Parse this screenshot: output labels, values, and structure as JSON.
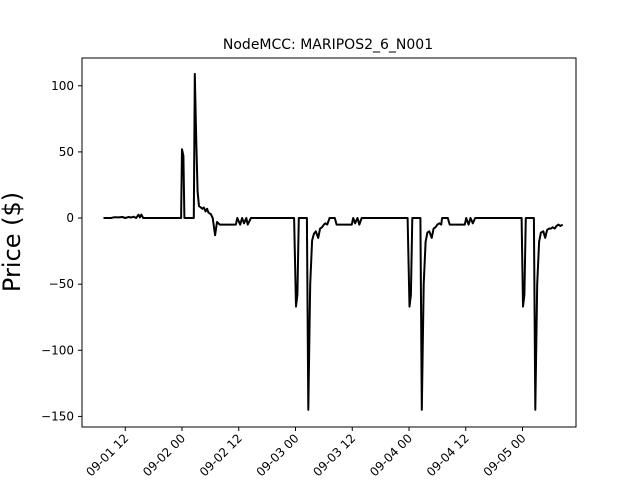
{
  "chart_data": {
    "type": "line",
    "title": "NodeMCC: MARIPOS2_6_N001",
    "xlabel": "",
    "ylabel": "Price ($)",
    "ylim": [
      -158,
      121
    ],
    "xlim_hours": [
      -31.5,
      56.0
    ],
    "grid": false,
    "x_ticks": [
      {
        "label": "09-01 12",
        "hours": -12
      },
      {
        "label": "09-02 00",
        "hours": 0
      },
      {
        "label": "09-02 12",
        "hours": 12
      },
      {
        "label": "09-03 00",
        "hours": 24
      },
      {
        "label": "09-03 12",
        "hours": 36
      },
      {
        "label": "09-04 00",
        "hours": 48
      },
      {
        "label": "09-04 12",
        "hours": 60
      },
      {
        "label": "09-05 00",
        "hours": 72
      }
    ],
    "y_ticks": [
      100,
      50,
      0,
      -50,
      -100,
      -150
    ],
    "series": [
      {
        "color": "#000000",
        "points": [
          [
            -16.6,
            0
          ],
          [
            -15.0,
            0
          ],
          [
            -14.3,
            0.6
          ],
          [
            -13.5,
            0.5
          ],
          [
            -12.6,
            0.8
          ],
          [
            -12.0,
            0
          ],
          [
            -11.3,
            0.8
          ],
          [
            -10.8,
            0.4
          ],
          [
            -10.2,
            1.0
          ],
          [
            -9.7,
            0
          ],
          [
            -9.2,
            2.5
          ],
          [
            -8.9,
            0.5
          ],
          [
            -8.6,
            2.7
          ],
          [
            -8.2,
            0
          ],
          [
            -0.2,
            0
          ],
          [
            0.0,
            52
          ],
          [
            0.3,
            47
          ],
          [
            0.5,
            0
          ],
          [
            2.5,
            0
          ],
          [
            2.7,
            109
          ],
          [
            3.0,
            60
          ],
          [
            3.3,
            20
          ],
          [
            3.6,
            9
          ],
          [
            4.0,
            8
          ],
          [
            4.3,
            7
          ],
          [
            4.6,
            8
          ],
          [
            5.0,
            5
          ],
          [
            5.3,
            7
          ],
          [
            5.6,
            4
          ],
          [
            6.1,
            3
          ],
          [
            6.5,
            0
          ],
          [
            7.0,
            -13
          ],
          [
            7.4,
            -3
          ],
          [
            8.0,
            -5
          ],
          [
            11.4,
            -5
          ],
          [
            11.7,
            0
          ],
          [
            12.3,
            -5
          ],
          [
            12.7,
            0
          ],
          [
            13.1,
            -4
          ],
          [
            13.6,
            0
          ],
          [
            13.9,
            -5
          ],
          [
            14.6,
            0
          ],
          [
            23.7,
            0
          ],
          [
            24.1,
            -67
          ],
          [
            24.4,
            -58
          ],
          [
            24.7,
            0
          ],
          [
            26.4,
            0
          ],
          [
            26.7,
            -145
          ],
          [
            27.1,
            -50
          ],
          [
            27.5,
            -17
          ],
          [
            27.9,
            -12
          ],
          [
            28.3,
            -10
          ],
          [
            28.8,
            -15
          ],
          [
            29.2,
            -8
          ],
          [
            29.6,
            -7
          ],
          [
            30.0,
            -5
          ],
          [
            30.3,
            -4
          ],
          [
            30.7,
            -5
          ],
          [
            31.2,
            0
          ],
          [
            32.3,
            0
          ],
          [
            32.7,
            -5
          ],
          [
            35.9,
            -5
          ],
          [
            36.2,
            0
          ],
          [
            36.6,
            -4
          ],
          [
            37.1,
            0
          ],
          [
            37.5,
            -5
          ],
          [
            38.0,
            0
          ],
          [
            47.7,
            0
          ],
          [
            48.1,
            -67
          ],
          [
            48.4,
            -58
          ],
          [
            48.7,
            0
          ],
          [
            50.4,
            0
          ],
          [
            50.7,
            -145
          ],
          [
            51.1,
            -50
          ],
          [
            51.5,
            -18
          ],
          [
            51.9,
            -11
          ],
          [
            52.3,
            -10
          ],
          [
            52.8,
            -15
          ],
          [
            53.2,
            -8
          ],
          [
            53.6,
            -7
          ],
          [
            54.0,
            -5
          ],
          [
            54.4,
            -4
          ],
          [
            54.8,
            -5
          ],
          [
            55.0,
            0
          ],
          [
            56.2,
            0
          ],
          [
            56.6,
            -5
          ],
          [
            59.8,
            -5
          ],
          [
            60.1,
            0
          ],
          [
            60.6,
            -5
          ],
          [
            61.0,
            0
          ],
          [
            61.5,
            -4
          ],
          [
            62.0,
            0
          ],
          [
            71.8,
            0
          ],
          [
            72.1,
            -67
          ],
          [
            72.4,
            -58
          ],
          [
            72.7,
            0
          ],
          [
            74.4,
            0
          ],
          [
            74.7,
            -145
          ],
          [
            75.1,
            -50
          ],
          [
            75.5,
            -18
          ],
          [
            75.9,
            -11
          ],
          [
            76.4,
            -10
          ],
          [
            76.8,
            -15
          ],
          [
            77.2,
            -9
          ],
          [
            77.6,
            -8
          ],
          [
            78.0,
            -8
          ],
          [
            78.4,
            -7
          ],
          [
            78.8,
            -8
          ],
          [
            79.2,
            -6
          ],
          [
            79.6,
            -5
          ],
          [
            80.0,
            -6
          ],
          [
            80.5,
            -5
          ]
        ]
      }
    ]
  }
}
